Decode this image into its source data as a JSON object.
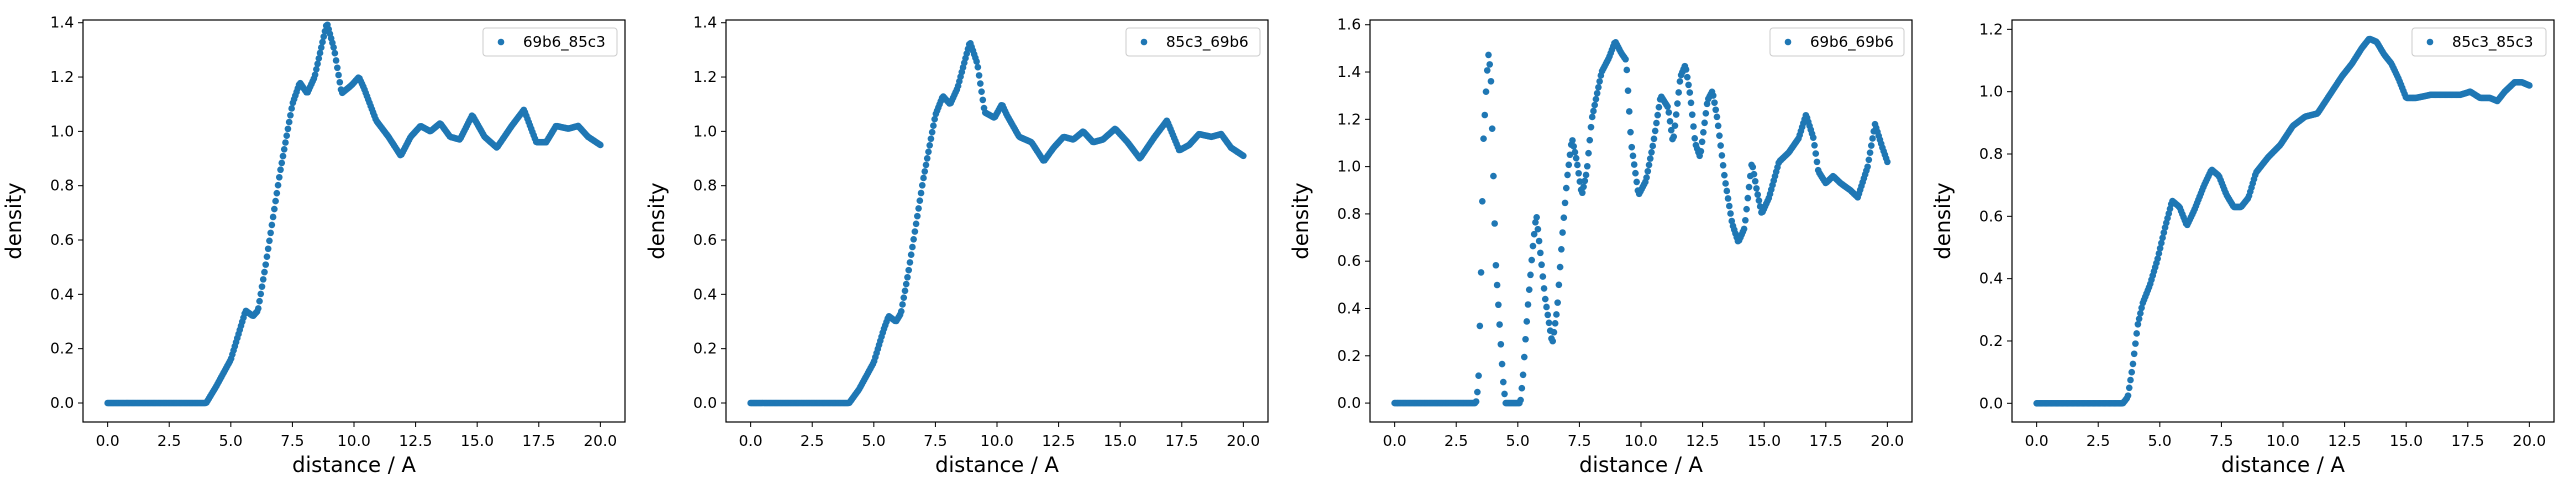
{
  "chart_data": [
    {
      "type": "scatter",
      "xlabel": "distance / A",
      "ylabel": "density",
      "xlim": [
        -1.0,
        21.0
      ],
      "ylim": [
        -0.07,
        1.41
      ],
      "xticks": [
        "0.0",
        "2.5",
        "5.0",
        "7.5",
        "10.0",
        "12.5",
        "15.0",
        "17.5",
        "20.0"
      ],
      "yticks": [
        "0.0",
        "0.2",
        "0.4",
        "0.6",
        "0.8",
        "1.0",
        "1.2",
        "1.4"
      ],
      "legend_position": "top-right",
      "grid": false,
      "series": [
        {
          "name": "69b6_85c3",
          "color": "#1f77b4",
          "marker": "circle",
          "x_range": [
            0.0,
            20.0
          ],
          "n_points": 400,
          "zero_until": 4.0,
          "keypoints": [
            [
              4.0,
              0.0
            ],
            [
              4.4,
              0.06
            ],
            [
              5.0,
              0.16
            ],
            [
              5.4,
              0.28
            ],
            [
              5.6,
              0.34
            ],
            [
              5.9,
              0.32
            ],
            [
              6.1,
              0.34
            ],
            [
              6.4,
              0.5
            ],
            [
              7.0,
              0.85
            ],
            [
              7.5,
              1.1
            ],
            [
              7.8,
              1.18
            ],
            [
              8.1,
              1.14
            ],
            [
              8.4,
              1.2
            ],
            [
              8.9,
              1.4
            ],
            [
              9.2,
              1.3
            ],
            [
              9.5,
              1.14
            ],
            [
              9.9,
              1.17
            ],
            [
              10.2,
              1.2
            ],
            [
              10.4,
              1.16
            ],
            [
              10.9,
              1.04
            ],
            [
              11.4,
              0.98
            ],
            [
              11.9,
              0.91
            ],
            [
              12.3,
              0.98
            ],
            [
              12.7,
              1.02
            ],
            [
              13.1,
              1.0
            ],
            [
              13.5,
              1.03
            ],
            [
              13.9,
              0.98
            ],
            [
              14.3,
              0.97
            ],
            [
              14.8,
              1.06
            ],
            [
              15.3,
              0.98
            ],
            [
              15.8,
              0.94
            ],
            [
              16.4,
              1.02
            ],
            [
              16.9,
              1.08
            ],
            [
              17.4,
              0.96
            ],
            [
              17.8,
              0.96
            ],
            [
              18.2,
              1.02
            ],
            [
              18.7,
              1.01
            ],
            [
              19.1,
              1.02
            ],
            [
              19.5,
              0.98
            ],
            [
              20.0,
              0.95
            ]
          ]
        }
      ]
    },
    {
      "type": "scatter",
      "xlabel": "distance / A",
      "ylabel": "density",
      "xlim": [
        -1.0,
        21.0
      ],
      "ylim": [
        -0.07,
        1.41
      ],
      "xticks": [
        "0.0",
        "2.5",
        "5.0",
        "7.5",
        "10.0",
        "12.5",
        "15.0",
        "17.5",
        "20.0"
      ],
      "yticks": [
        "0.0",
        "0.2",
        "0.4",
        "0.6",
        "0.8",
        "1.0",
        "1.2",
        "1.4"
      ],
      "legend_position": "top-right",
      "grid": false,
      "series": [
        {
          "name": "85c3_69b6",
          "color": "#1f77b4",
          "marker": "circle",
          "x_range": [
            0.0,
            20.0
          ],
          "n_points": 400,
          "zero_until": 4.0,
          "keypoints": [
            [
              4.0,
              0.0
            ],
            [
              4.4,
              0.05
            ],
            [
              5.0,
              0.15
            ],
            [
              5.4,
              0.27
            ],
            [
              5.6,
              0.32
            ],
            [
              5.9,
              0.3
            ],
            [
              6.1,
              0.33
            ],
            [
              6.4,
              0.48
            ],
            [
              7.0,
              0.82
            ],
            [
              7.5,
              1.06
            ],
            [
              7.8,
              1.13
            ],
            [
              8.1,
              1.1
            ],
            [
              8.4,
              1.16
            ],
            [
              8.9,
              1.33
            ],
            [
              9.2,
              1.25
            ],
            [
              9.5,
              1.07
            ],
            [
              9.9,
              1.05
            ],
            [
              10.2,
              1.1
            ],
            [
              10.4,
              1.06
            ],
            [
              10.9,
              0.98
            ],
            [
              11.4,
              0.96
            ],
            [
              11.9,
              0.89
            ],
            [
              12.3,
              0.94
            ],
            [
              12.7,
              0.98
            ],
            [
              13.1,
              0.97
            ],
            [
              13.5,
              1.0
            ],
            [
              13.9,
              0.96
            ],
            [
              14.3,
              0.97
            ],
            [
              14.8,
              1.01
            ],
            [
              15.3,
              0.96
            ],
            [
              15.8,
              0.9
            ],
            [
              16.4,
              0.98
            ],
            [
              16.9,
              1.04
            ],
            [
              17.4,
              0.93
            ],
            [
              17.8,
              0.95
            ],
            [
              18.2,
              0.99
            ],
            [
              18.7,
              0.98
            ],
            [
              19.1,
              0.99
            ],
            [
              19.5,
              0.94
            ],
            [
              20.0,
              0.91
            ]
          ]
        }
      ]
    },
    {
      "type": "scatter",
      "xlabel": "distance / A",
      "ylabel": "density",
      "xlim": [
        -1.0,
        21.0
      ],
      "ylim": [
        -0.08,
        1.62
      ],
      "xticks": [
        "0.0",
        "2.5",
        "5.0",
        "7.5",
        "10.0",
        "12.5",
        "15.0",
        "17.5",
        "20.0"
      ],
      "yticks": [
        "0.0",
        "0.2",
        "0.4",
        "0.6",
        "0.8",
        "1.0",
        "1.2",
        "1.4",
        "1.6"
      ],
      "legend_position": "top-right",
      "grid": false,
      "series": [
        {
          "name": "69b6_69b6",
          "color": "#1f77b4",
          "marker": "circle",
          "x_range": [
            0.0,
            20.0
          ],
          "n_points": 400,
          "zero_until": 3.3,
          "keypoints": [
            [
              3.3,
              0.0
            ],
            [
              3.4,
              0.08
            ],
            [
              3.5,
              0.5
            ],
            [
              3.6,
              1.1
            ],
            [
              3.7,
              1.3
            ],
            [
              3.8,
              1.48
            ],
            [
              3.9,
              1.4
            ],
            [
              4.0,
              1.0
            ],
            [
              4.1,
              0.6
            ],
            [
              4.25,
              0.35
            ],
            [
              4.4,
              0.1
            ],
            [
              4.5,
              0.0
            ],
            [
              5.1,
              0.0
            ],
            [
              5.2,
              0.1
            ],
            [
              5.4,
              0.4
            ],
            [
              5.6,
              0.65
            ],
            [
              5.75,
              0.8
            ],
            [
              5.9,
              0.65
            ],
            [
              6.1,
              0.45
            ],
            [
              6.4,
              0.25
            ],
            [
              6.6,
              0.4
            ],
            [
              6.8,
              0.7
            ],
            [
              7.0,
              0.95
            ],
            [
              7.2,
              1.12
            ],
            [
              7.4,
              1.02
            ],
            [
              7.6,
              0.88
            ],
            [
              7.8,
              0.98
            ],
            [
              8.0,
              1.2
            ],
            [
              8.4,
              1.4
            ],
            [
              8.7,
              1.46
            ],
            [
              8.95,
              1.53
            ],
            [
              9.2,
              1.48
            ],
            [
              9.4,
              1.45
            ],
            [
              9.6,
              1.1
            ],
            [
              9.9,
              0.88
            ],
            [
              10.2,
              0.94
            ],
            [
              10.5,
              1.1
            ],
            [
              10.8,
              1.3
            ],
            [
              11.1,
              1.25
            ],
            [
              11.3,
              1.1
            ],
            [
              11.6,
              1.38
            ],
            [
              11.8,
              1.43
            ],
            [
              12.0,
              1.3
            ],
            [
              12.2,
              1.1
            ],
            [
              12.4,
              1.04
            ],
            [
              12.7,
              1.28
            ],
            [
              12.9,
              1.32
            ],
            [
              13.1,
              1.2
            ],
            [
              13.4,
              0.95
            ],
            [
              13.7,
              0.76
            ],
            [
              13.95,
              0.68
            ],
            [
              14.2,
              0.74
            ],
            [
              14.5,
              1.02
            ],
            [
              14.7,
              0.9
            ],
            [
              14.9,
              0.8
            ],
            [
              15.2,
              0.87
            ],
            [
              15.6,
              1.02
            ],
            [
              16.0,
              1.06
            ],
            [
              16.4,
              1.12
            ],
            [
              16.7,
              1.22
            ],
            [
              17.0,
              1.12
            ],
            [
              17.2,
              0.98
            ],
            [
              17.5,
              0.93
            ],
            [
              17.8,
              0.96
            ],
            [
              18.1,
              0.93
            ],
            [
              18.5,
              0.9
            ],
            [
              18.8,
              0.87
            ],
            [
              19.2,
              1.0
            ],
            [
              19.5,
              1.18
            ],
            [
              19.8,
              1.08
            ],
            [
              20.0,
              1.02
            ]
          ]
        }
      ]
    },
    {
      "type": "scatter",
      "xlabel": "distance / A",
      "ylabel": "density",
      "xlim": [
        -1.0,
        21.0
      ],
      "ylim": [
        -0.06,
        1.23
      ],
      "xticks": [
        "0.0",
        "2.5",
        "5.0",
        "7.5",
        "10.0",
        "12.5",
        "15.0",
        "17.5",
        "20.0"
      ],
      "yticks": [
        "0.0",
        "0.2",
        "0.4",
        "0.6",
        "0.8",
        "1.0",
        "1.2"
      ],
      "legend_position": "top-right",
      "grid": false,
      "series": [
        {
          "name": "85c3_85c3",
          "color": "#1f77b4",
          "marker": "circle",
          "x_range": [
            0.0,
            20.0
          ],
          "n_points": 400,
          "zero_until": 3.5,
          "keypoints": [
            [
              3.5,
              0.0
            ],
            [
              3.7,
              0.02
            ],
            [
              3.9,
              0.12
            ],
            [
              4.1,
              0.25
            ],
            [
              4.3,
              0.32
            ],
            [
              4.6,
              0.38
            ],
            [
              4.9,
              0.46
            ],
            [
              5.2,
              0.56
            ],
            [
              5.5,
              0.65
            ],
            [
              5.8,
              0.63
            ],
            [
              6.1,
              0.57
            ],
            [
              6.4,
              0.62
            ],
            [
              6.8,
              0.7
            ],
            [
              7.1,
              0.75
            ],
            [
              7.4,
              0.73
            ],
            [
              7.7,
              0.67
            ],
            [
              8.0,
              0.63
            ],
            [
              8.3,
              0.63
            ],
            [
              8.6,
              0.66
            ],
            [
              8.9,
              0.74
            ],
            [
              9.4,
              0.79
            ],
            [
              9.9,
              0.83
            ],
            [
              10.4,
              0.89
            ],
            [
              10.9,
              0.92
            ],
            [
              11.4,
              0.93
            ],
            [
              11.9,
              0.99
            ],
            [
              12.4,
              1.05
            ],
            [
              12.8,
              1.09
            ],
            [
              13.2,
              1.14
            ],
            [
              13.5,
              1.17
            ],
            [
              13.8,
              1.16
            ],
            [
              14.1,
              1.12
            ],
            [
              14.4,
              1.09
            ],
            [
              14.7,
              1.04
            ],
            [
              15.0,
              0.98
            ],
            [
              15.4,
              0.98
            ],
            [
              16.0,
              0.99
            ],
            [
              16.6,
              0.99
            ],
            [
              17.2,
              0.99
            ],
            [
              17.6,
              1.0
            ],
            [
              18.0,
              0.98
            ],
            [
              18.4,
              0.98
            ],
            [
              18.7,
              0.97
            ],
            [
              19.0,
              1.0
            ],
            [
              19.4,
              1.03
            ],
            [
              19.7,
              1.03
            ],
            [
              20.0,
              1.02
            ]
          ]
        }
      ]
    }
  ]
}
